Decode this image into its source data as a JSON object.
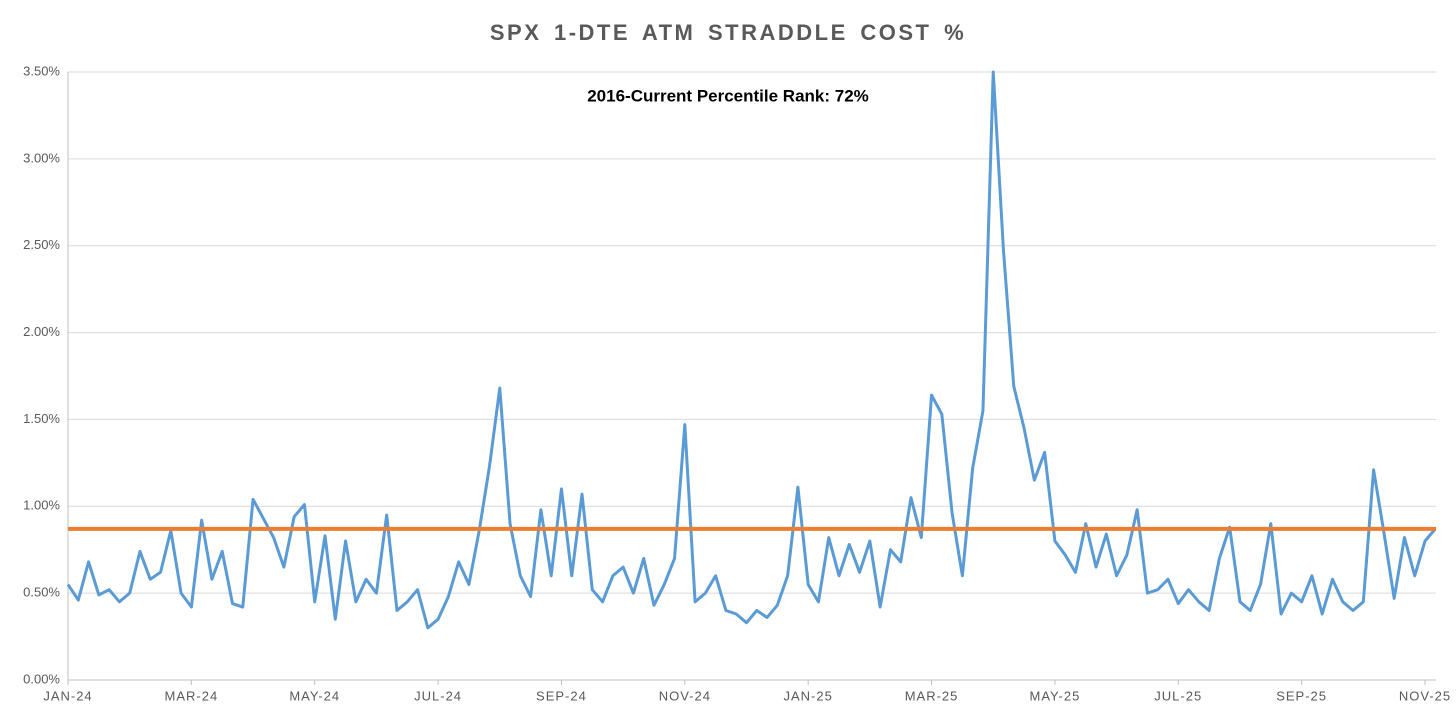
{
  "chart_data": {
    "type": "line",
    "title": "SPX 1-DTE ATM STRADDLE COST %",
    "annotation": "2016-Current Percentile Rank: 72%",
    "categories": [
      "JAN-24",
      null,
      null,
      null,
      null,
      null,
      null,
      null,
      null,
      null,
      null,
      null,
      "MAR-24",
      null,
      null,
      null,
      null,
      null,
      null,
      null,
      null,
      null,
      null,
      null,
      "MAY-24",
      null,
      null,
      null,
      null,
      null,
      null,
      null,
      null,
      null,
      null,
      null,
      "JUL-24",
      null,
      null,
      null,
      null,
      null,
      null,
      null,
      null,
      null,
      null,
      null,
      "SEP-24",
      null,
      null,
      null,
      null,
      null,
      null,
      null,
      null,
      null,
      null,
      null,
      "NOV-24",
      null,
      null,
      null,
      null,
      null,
      null,
      null,
      null,
      null,
      null,
      null,
      "JAN-25",
      null,
      null,
      null,
      null,
      null,
      null,
      null,
      null,
      null,
      null,
      null,
      "MAR-25",
      null,
      null,
      null,
      null,
      null,
      null,
      null,
      null,
      null,
      null,
      null,
      "MAY-25",
      null,
      null,
      null,
      null,
      null,
      null,
      null,
      null,
      null,
      null,
      null,
      "JUL-25",
      null,
      null,
      null,
      null,
      null,
      null,
      null,
      null,
      null,
      null,
      null,
      "SEP-25",
      null,
      null,
      null,
      null,
      null,
      null,
      null,
      null,
      null,
      null,
      null,
      "NOV-25",
      null
    ],
    "series": [
      {
        "color": "#5b9bd5",
        "values": [
          0.55,
          0.46,
          0.68,
          0.49,
          0.52,
          0.45,
          0.5,
          0.74,
          0.58,
          0.62,
          0.86,
          0.5,
          0.42,
          0.92,
          0.58,
          0.74,
          0.44,
          0.42,
          1.04,
          0.93,
          0.82,
          0.65,
          0.94,
          1.01,
          0.45,
          0.83,
          0.35,
          0.8,
          0.45,
          0.58,
          0.5,
          0.95,
          0.4,
          0.45,
          0.52,
          0.3,
          0.35,
          0.48,
          0.68,
          0.55,
          0.86,
          1.23,
          1.68,
          0.9,
          0.6,
          0.48,
          0.98,
          0.6,
          1.1,
          0.6,
          1.07,
          0.52,
          0.45,
          0.6,
          0.65,
          0.5,
          0.7,
          0.43,
          0.55,
          0.7,
          1.47,
          0.45,
          0.5,
          0.6,
          0.4,
          0.38,
          0.33,
          0.4,
          0.36,
          0.43,
          0.6,
          1.11,
          0.55,
          0.45,
          0.82,
          0.6,
          0.78,
          0.62,
          0.8,
          0.42,
          0.75,
          0.68,
          1.05,
          0.82,
          1.64,
          1.53,
          0.96,
          0.6,
          1.22,
          1.55,
          3.5,
          2.47,
          1.69,
          1.45,
          1.15,
          1.31,
          0.8,
          0.72,
          0.62,
          0.9,
          0.65,
          0.84,
          0.6,
          0.72,
          0.98,
          0.5,
          0.52,
          0.58,
          0.44,
          0.52,
          0.45,
          0.4,
          0.7,
          0.88,
          0.45,
          0.4,
          0.55,
          0.9,
          0.38,
          0.5,
          0.45,
          0.6,
          0.38,
          0.58,
          0.45,
          0.4,
          0.45,
          1.21,
          0.85,
          0.47,
          0.82,
          0.6,
          0.8,
          0.87
        ]
      }
    ],
    "reference_line": {
      "value": 0.87,
      "color": "#ed7d31"
    },
    "ylim": [
      0,
      3.5
    ],
    "yticks": [
      {
        "value": 0,
        "label": "0.00%"
      },
      {
        "value": 0.5,
        "label": "0.50%"
      },
      {
        "value": 1,
        "label": "1.00%"
      },
      {
        "value": 1.5,
        "label": "1.50%"
      },
      {
        "value": 2,
        "label": "2.00%"
      },
      {
        "value": 2.5,
        "label": "2.50%"
      },
      {
        "value": 3,
        "label": "3.00%"
      },
      {
        "value": 3.5,
        "label": "3.50%"
      }
    ],
    "grid": true
  }
}
